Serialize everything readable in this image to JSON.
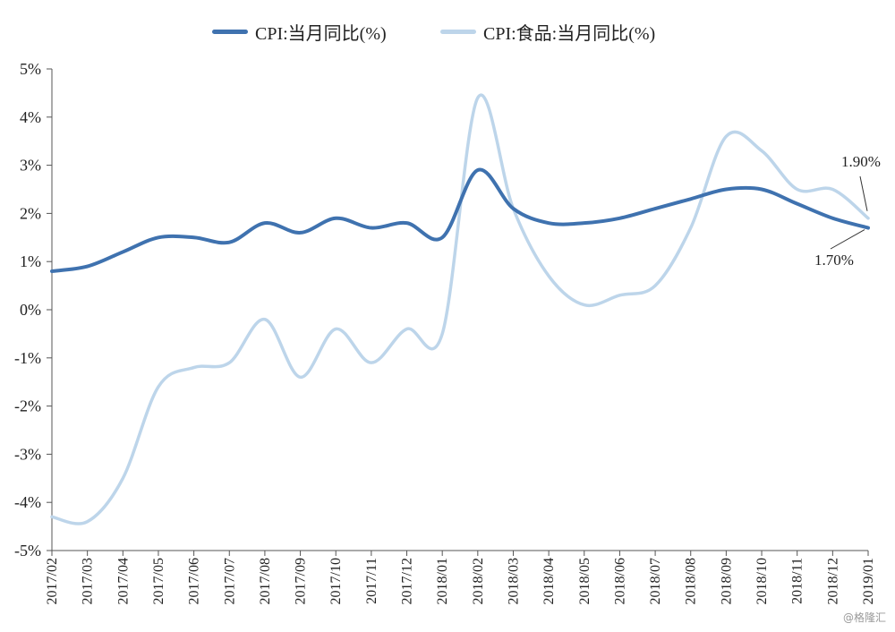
{
  "chart_data": {
    "type": "line",
    "legend_position": "top",
    "grid": false,
    "categories": [
      "2017/02",
      "2017/03",
      "2017/04",
      "2017/05",
      "2017/06",
      "2017/07",
      "2017/08",
      "2017/09",
      "2017/10",
      "2017/11",
      "2017/12",
      "2018/01",
      "2018/02",
      "2018/03",
      "2018/04",
      "2018/05",
      "2018/06",
      "2018/07",
      "2018/08",
      "2018/09",
      "2018/10",
      "2018/11",
      "2018/12",
      "2019/01"
    ],
    "ylim": [
      -5,
      5
    ],
    "y_ticks": [
      5,
      4,
      3,
      2,
      1,
      0,
      -1,
      -2,
      -3,
      -4,
      -5
    ],
    "y_tick_labels": [
      "5%",
      "4%",
      "3%",
      "2%",
      "1%",
      "0%",
      "-1%",
      "-2%",
      "-3%",
      "-4%",
      "-5%"
    ],
    "series": [
      {
        "name": "CPI:当月同比(%)",
        "color": "#3f72af",
        "values": [
          0.8,
          0.9,
          1.2,
          1.5,
          1.5,
          1.4,
          1.8,
          1.6,
          1.9,
          1.7,
          1.8,
          1.5,
          2.9,
          2.1,
          1.8,
          1.8,
          1.9,
          2.1,
          2.3,
          2.5,
          2.5,
          2.2,
          1.9,
          1.7
        ]
      },
      {
        "name": "CPI:食品:当月同比(%)",
        "color": "#bdd5ea",
        "values": [
          -4.3,
          -4.4,
          -3.5,
          -1.6,
          -1.2,
          -1.1,
          -0.2,
          -1.4,
          -0.4,
          -1.1,
          -0.4,
          -0.5,
          4.4,
          2.1,
          0.7,
          0.1,
          0.3,
          0.5,
          1.7,
          3.6,
          3.3,
          2.5,
          2.5,
          1.9
        ]
      }
    ],
    "annotations": [
      {
        "text": "1.90%",
        "series": 1,
        "index": 23,
        "value": 1.9
      },
      {
        "text": "1.70%",
        "series": 0,
        "index": 23,
        "value": 1.7
      }
    ]
  },
  "watermark": "@格隆汇"
}
